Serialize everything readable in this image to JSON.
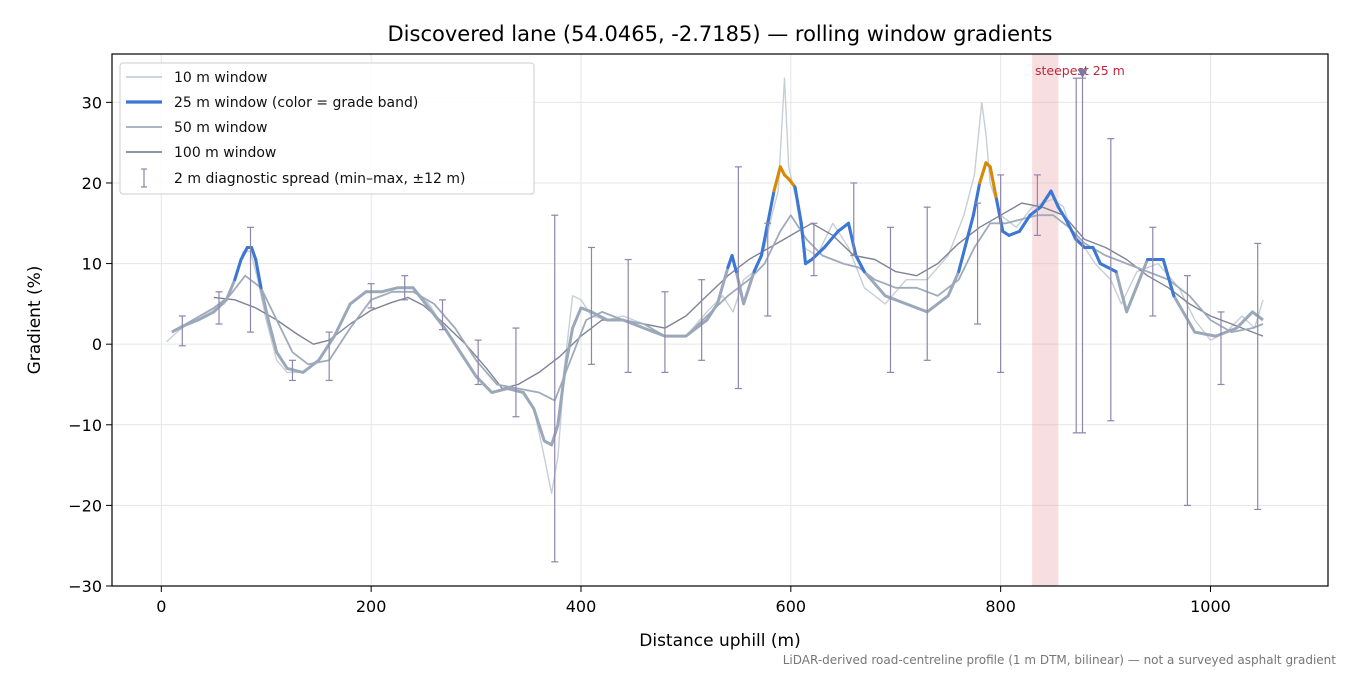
{
  "chart_data": {
    "type": "line",
    "title": "Discovered lane (54.0465, -2.7185) — rolling window gradients",
    "xlabel": "Distance uphill (m)",
    "ylabel": "Gradient (%)",
    "xlim": [
      -47,
      1112
    ],
    "ylim": [
      -30,
      36
    ],
    "x_ticks": [
      0,
      200,
      400,
      600,
      800,
      1000
    ],
    "x_tick_labels": [
      "0",
      "200",
      "400",
      "600",
      "800",
      "1000"
    ],
    "y_ticks": [
      -30,
      -20,
      -10,
      0,
      10,
      20,
      30
    ],
    "y_tick_labels": [
      "−30",
      "−20",
      "−10",
      "0",
      "10",
      "20",
      "30"
    ],
    "grid": true,
    "legend_position": "top-left",
    "footnote": "LiDAR-derived road-centreline profile (1 m DTM, bilinear) — not a surveyed asphalt gradient",
    "series": [
      {
        "name": "10 m window",
        "color": "#c7ced6",
        "x": [
          5,
          15,
          30,
          45,
          60,
          70,
          78,
          85,
          92,
          100,
          110,
          120,
          135,
          150,
          165,
          180,
          195,
          210,
          225,
          240,
          255,
          270,
          285,
          300,
          315,
          330,
          345,
          355,
          365,
          372,
          378,
          385,
          392,
          400,
          410,
          425,
          440,
          460,
          480,
          500,
          520,
          535,
          545,
          555,
          565,
          575,
          582,
          588,
          594,
          598,
          605,
          612,
          625,
          640,
          655,
          670,
          690,
          710,
          730,
          750,
          765,
          775,
          782,
          786,
          790,
          800,
          815,
          830,
          850,
          860,
          870,
          880,
          890,
          905,
          915,
          930,
          950,
          970,
          985,
          1000,
          1015,
          1030,
          1042,
          1050
        ],
        "values": [
          0.3,
          1.5,
          3,
          4,
          5,
          8,
          11.5,
          11.5,
          8,
          3,
          -2,
          -3.5,
          -3.5,
          -2,
          1,
          5,
          6.5,
          6.5,
          7,
          7,
          5,
          2,
          -1,
          -4,
          -6,
          -5.5,
          -6,
          -8,
          -14,
          -18.5,
          -14,
          -2,
          6,
          5.5,
          3.5,
          3,
          3.5,
          2.5,
          1,
          1,
          4,
          6,
          4,
          8,
          9,
          12,
          16,
          19,
          33,
          22,
          18,
          12,
          11,
          15,
          12,
          7,
          5,
          8,
          8,
          11,
          16,
          21,
          30,
          26,
          20,
          16,
          14.5,
          17,
          18,
          17,
          13,
          12,
          10,
          8,
          5,
          9,
          10,
          7,
          3,
          0.5,
          1.5,
          3.5,
          2,
          5.5
        ]
      },
      {
        "name": "25 m window (color = grade band)",
        "color": "#3b77d4",
        "band_colors": {
          "low": "#9aa8ba",
          "mid": "#3b77d4",
          "high": "#d98a00"
        },
        "x": [
          10,
          20,
          35,
          50,
          62,
          70,
          76,
          82,
          86,
          90,
          95,
          102,
          110,
          120,
          135,
          150,
          165,
          180,
          195,
          210,
          225,
          240,
          255,
          270,
          285,
          300,
          315,
          330,
          345,
          355,
          365,
          372,
          378,
          385,
          392,
          400,
          410,
          425,
          440,
          460,
          480,
          500,
          520,
          530,
          540,
          544,
          548,
          555,
          565,
          572,
          578,
          584,
          590,
          594,
          598,
          604,
          610,
          614,
          620,
          632,
          645,
          655,
          662,
          670,
          690,
          710,
          730,
          750,
          760,
          768,
          774,
          780,
          786,
          790,
          796,
          802,
          808,
          818,
          828,
          838,
          848,
          855,
          862,
          872,
          880,
          888,
          895,
          910,
          920,
          940,
          955,
          965,
          985,
          1005,
          1025,
          1040,
          1050
        ],
        "values": [
          1.5,
          2.2,
          3,
          4,
          5.5,
          8,
          10.5,
          12,
          12,
          10.5,
          7,
          3,
          -1,
          -3,
          -3.5,
          -2,
          1,
          5,
          6.5,
          6.5,
          7,
          7,
          4.5,
          2,
          -1,
          -4,
          -6,
          -5.5,
          -6,
          -8,
          -12,
          -12.5,
          -10,
          -3,
          2,
          4.5,
          4,
          3,
          3,
          2,
          1,
          1,
          3,
          5,
          9.5,
          11,
          9,
          5,
          9,
          11,
          15,
          19,
          22,
          21,
          20.5,
          19.5,
          15,
          10,
          10.5,
          12,
          14,
          15,
          11,
          9,
          6,
          5,
          4,
          6,
          9,
          13,
          16,
          20,
          22.5,
          22,
          18,
          14,
          13.5,
          14,
          16,
          17,
          19,
          17,
          15.5,
          13,
          12,
          12,
          10,
          9,
          4,
          10.5,
          10.5,
          6,
          1.5,
          1,
          2,
          4,
          3
        ]
      },
      {
        "name": "50 m window",
        "color": "#9fabbb",
        "x": [
          10,
          30,
          50,
          65,
          80,
          95,
          110,
          125,
          140,
          160,
          180,
          200,
          220,
          240,
          260,
          280,
          300,
          320,
          340,
          360,
          375,
          390,
          405,
          420,
          440,
          460,
          480,
          500,
          520,
          540,
          560,
          575,
          590,
          600,
          615,
          630,
          650,
          665,
          680,
          700,
          720,
          740,
          760,
          775,
          790,
          805,
          820,
          835,
          850,
          865,
          880,
          900,
          920,
          940,
          960,
          980,
          1000,
          1020,
          1040,
          1050
        ],
        "values": [
          1.5,
          3,
          4.5,
          6,
          8.5,
          7,
          3,
          -1,
          -2.5,
          -2,
          2,
          5.5,
          6.5,
          6.5,
          5,
          2,
          -2,
          -5,
          -5.5,
          -6,
          -7,
          -2,
          3,
          4,
          3,
          2.5,
          1,
          1,
          3.5,
          6,
          8,
          10,
          14,
          16,
          13,
          11,
          10,
          9.5,
          8,
          7,
          7,
          6,
          8,
          12,
          15,
          15,
          15.5,
          16,
          16,
          14.5,
          12.5,
          11,
          10,
          9,
          8,
          6,
          3,
          1.5,
          2,
          2.5
        ]
      },
      {
        "name": "100 m window",
        "color": "#7e8494",
        "x": [
          50,
          70,
          90,
          110,
          130,
          145,
          160,
          180,
          200,
          220,
          235,
          250,
          270,
          290,
          310,
          325,
          340,
          360,
          380,
          400,
          420,
          440,
          460,
          480,
          500,
          520,
          540,
          560,
          580,
          600,
          620,
          640,
          660,
          680,
          700,
          720,
          740,
          760,
          780,
          800,
          820,
          840,
          860,
          880,
          900,
          920,
          940,
          960,
          980,
          1000,
          1020,
          1040,
          1050
        ],
        "values": [
          5.8,
          5.5,
          4.5,
          3,
          1.2,
          0,
          0.5,
          2.5,
          4.2,
          5.2,
          5.8,
          4.8,
          2.5,
          0,
          -3,
          -5.5,
          -5,
          -3.5,
          -1.5,
          1,
          3,
          3,
          2.5,
          2,
          3.5,
          6,
          8.5,
          10.5,
          12,
          13.5,
          15,
          13.5,
          11,
          10.5,
          9,
          8.5,
          10,
          12.5,
          14.5,
          16,
          17.5,
          17,
          16,
          13,
          12,
          10.5,
          8.5,
          7,
          5,
          3.5,
          2.5,
          1.5,
          1
        ]
      },
      {
        "name": "2 m diagnostic spread (min–max, ±12 m)",
        "color": "#8e86ab",
        "type": "errorbar",
        "x": [
          20,
          55,
          85,
          125,
          160,
          200,
          232,
          268,
          302,
          338,
          375,
          410,
          445,
          480,
          515,
          550,
          578,
          622,
          660,
          695,
          730,
          778,
          800,
          835,
          872,
          878,
          905,
          945,
          978,
          1010,
          1045
        ],
        "center": [
          1.5,
          4.5,
          11.5,
          -3.5,
          -1.5,
          6,
          7,
          4,
          -3.5,
          -5.5,
          -10,
          4.5,
          3,
          2,
          4,
          8,
          9,
          11,
          14,
          8,
          6,
          11,
          12.5,
          16,
          13,
          30,
          12,
          9,
          2.5,
          1.5,
          3
        ],
        "y_min": [
          -0.2,
          2.5,
          1.5,
          -4.5,
          -4.5,
          4.5,
          5.5,
          1.8,
          -5,
          -9,
          -27,
          -2.5,
          -3.5,
          -3.5,
          -2,
          -5.5,
          3.5,
          8.5,
          11,
          -3.5,
          -2,
          2.5,
          -3.5,
          13.5,
          -11,
          -11,
          -9.5,
          3.5,
          -20,
          -5,
          -20.5
        ],
        "y_max": [
          3.5,
          6.5,
          14.5,
          -2,
          1.5,
          7.5,
          8.5,
          5.5,
          0.5,
          2,
          16,
          12,
          10.5,
          6.5,
          8,
          22,
          15,
          15,
          20,
          14.5,
          17,
          17.5,
          21,
          21,
          33,
          33,
          25.5,
          14.5,
          8.5,
          4,
          12.5
        ]
      }
    ],
    "annotations": [
      {
        "text": "steepest 25 m",
        "x_range": [
          830,
          855
        ],
        "marker_x": 878,
        "marker_y": 33.5,
        "color": "#e8a0a8"
      }
    ]
  }
}
